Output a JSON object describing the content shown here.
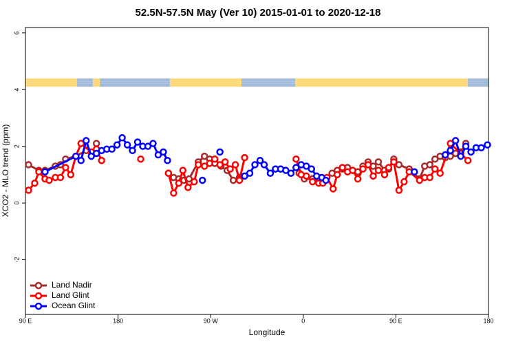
{
  "chart_data": {
    "type": "line",
    "title": "52.5N-57.5N May (Ver 10)   2015-01-01 to 2020-12-18",
    "x_label": "Longitude",
    "y_label": "XCO2 - MLO trend (ppm)",
    "xlim": [
      90,
      540
    ],
    "xticks": [
      {
        "value": 90,
        "label": "90 E"
      },
      180,
      {
        "value": 270,
        "label": "90 W"
      },
      {
        "value": 360,
        "label": "0"
      },
      {
        "value": 450,
        "label": "90 E"
      },
      {
        "value": 540,
        "label": "180"
      }
    ],
    "ylim": [
      -3.93,
      6.19
    ],
    "yticks": [
      -2,
      0,
      2,
      4,
      6
    ],
    "legend": "bottom-left",
    "series": [
      {
        "name": "Land Nadir",
        "color": "#a52a2a",
        "x": [
          93,
          103,
          109,
          119,
          124,
          129,
          139,
          149,
          155.5,
          159,
          194,
          229,
          234,
          239,
          244,
          249,
          258,
          264,
          269,
          274,
          280,
          286,
          292,
          298,
          327,
          356,
          361,
          369,
          378,
          388,
          393,
          398,
          403,
          408,
          413,
          418,
          423,
          428,
          433,
          439,
          443,
          448,
          453,
          463,
          473,
          478,
          483,
          488,
          493,
          498,
          503,
          508,
          513,
          518
        ],
        "values": [
          1.35,
          1.15,
          1.15,
          1.3,
          1.35,
          1.55,
          1.65,
          1.85,
          1.75,
          2.1,
          null,
          1.05,
          0.9,
          0.85,
          0.8,
          0.85,
          1.45,
          1.65,
          1.55,
          1.4,
          1.3,
          1.15,
          0.8,
          0.9,
          null,
          1.05,
          0.85,
          0.85,
          0.75,
          1.05,
          1.15,
          1.2,
          1.25,
          1.15,
          1.1,
          1.3,
          1.45,
          1.3,
          1.45,
          1.15,
          1.2,
          1.55,
          1.35,
          1.2,
          0.85,
          1.3,
          1.35,
          1.55,
          1.65,
          1.6,
          1.65,
          1.75,
          1.8,
          2.1
        ]
      },
      {
        "name": "Land Glint",
        "color": "#ff0000",
        "x": [
          93,
          99,
          103,
          109,
          113,
          119,
          124,
          129,
          134,
          139,
          144,
          154,
          159,
          164,
          183,
          202,
          215,
          229,
          234,
          239,
          243,
          248,
          254,
          258,
          264,
          269,
          274,
          279,
          284,
          289,
          294,
          298,
          303,
          328,
          353,
          358,
          363,
          369,
          375,
          379,
          383,
          389,
          393,
          398,
          403,
          408,
          413,
          418,
          423,
          428,
          433,
          439,
          443,
          448,
          453,
          458,
          463,
          473,
          478,
          483,
          488,
          493,
          503,
          513,
          520
        ],
        "values": [
          0.45,
          0.7,
          1.1,
          0.85,
          0.8,
          0.9,
          0.9,
          1.25,
          1.0,
          1.65,
          2.1,
          1.8,
          1.9,
          1.5,
          null,
          1.55,
          null,
          1.05,
          0.35,
          0.7,
          1.15,
          0.55,
          0.75,
          1.35,
          1.3,
          1.4,
          1.55,
          1.35,
          1.45,
          1.2,
          1.35,
          0.8,
          1.6,
          null,
          1.55,
          1.0,
          0.95,
          0.75,
          0.7,
          0.7,
          0.9,
          0.5,
          1.0,
          1.25,
          1.1,
          1.15,
          0.85,
          1.2,
          1.35,
          0.95,
          1.15,
          1.0,
          1.25,
          1.45,
          0.45,
          0.75,
          1.1,
          0.8,
          0.9,
          0.9,
          1.2,
          1.05,
          2.1,
          1.75,
          1.5
        ]
      },
      {
        "name": "Ocean Glint",
        "color": "#0000ff",
        "x": [
          109,
          139,
          144,
          149,
          154,
          159,
          164,
          169,
          174,
          179,
          184,
          189,
          194,
          199,
          204,
          209,
          214,
          219,
          224,
          228,
          245,
          262,
          270,
          279,
          290,
          303,
          308,
          313,
          318,
          322,
          328,
          333,
          338,
          343,
          348,
          353,
          358,
          363,
          368,
          373,
          378,
          382,
          425,
          468,
          483,
          498,
          503,
          508,
          513,
          518,
          523,
          528,
          533,
          539
        ],
        "values": [
          1.1,
          1.65,
          1.5,
          2.2,
          1.65,
          1.75,
          1.85,
          1.9,
          1.9,
          2.05,
          2.3,
          2.05,
          1.85,
          2.15,
          2.0,
          2.0,
          2.1,
          1.7,
          1.8,
          1.5,
          null,
          0.8,
          null,
          1.8,
          null,
          0.95,
          1.05,
          1.35,
          1.5,
          1.35,
          1.05,
          1.2,
          1.2,
          1.15,
          1.05,
          1.25,
          1.35,
          1.3,
          1.2,
          0.95,
          0.9,
          0.8,
          null,
          1.1,
          null,
          1.7,
          1.85,
          2.2,
          1.65,
          2.0,
          1.8,
          1.95,
          1.95,
          2.05
        ]
      }
    ]
  }
}
